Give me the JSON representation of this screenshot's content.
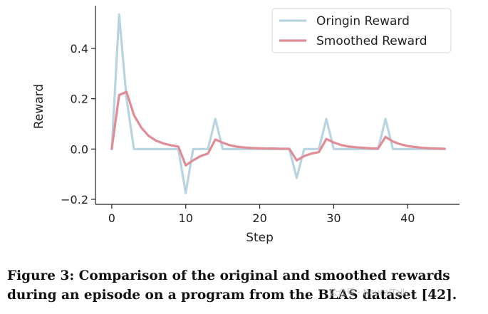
{
  "chart_data": {
    "type": "line",
    "xlabel": "Step",
    "ylabel": "Reward",
    "xlim": [
      -2.2,
      47
    ],
    "ylim": [
      -0.22,
      0.57
    ],
    "xticks": [
      0,
      10,
      20,
      30,
      40
    ],
    "yticks": [
      -0.2,
      0.0,
      0.2,
      0.4
    ],
    "ytick_labels": [
      "−0.2",
      "0.0",
      "0.2",
      "0.4"
    ],
    "grid": false,
    "legend_position": "top-right",
    "x": [
      0,
      1,
      2,
      3,
      4,
      5,
      6,
      7,
      8,
      9,
      10,
      11,
      12,
      13,
      14,
      15,
      16,
      17,
      18,
      19,
      20,
      21,
      22,
      23,
      24,
      25,
      26,
      27,
      28,
      29,
      30,
      31,
      32,
      33,
      34,
      35,
      36,
      37,
      38,
      39,
      40,
      41,
      42,
      43,
      44,
      45
    ],
    "series": [
      {
        "name": "Oringin Reward",
        "color": "#b9d4e1",
        "values": [
          0,
          0.535,
          0.2,
          0,
          0,
          0,
          0,
          0,
          0,
          0,
          -0.175,
          0,
          0,
          0,
          0.12,
          0,
          0,
          0,
          0,
          0,
          0,
          0,
          0,
          0,
          0,
          -0.115,
          0,
          0,
          0,
          0.12,
          0,
          0,
          0,
          0,
          0,
          0,
          0,
          0.12,
          0,
          0,
          0,
          0,
          0,
          0,
          0,
          0
        ]
      },
      {
        "name": "Smoothed Reward",
        "color": "#df8c96",
        "values": [
          0,
          0.215,
          0.227,
          0.135,
          0.085,
          0.052,
          0.033,
          0.022,
          0.015,
          0.01,
          -0.065,
          -0.045,
          -0.028,
          -0.018,
          0.038,
          0.025,
          0.015,
          0.009,
          0.006,
          0.004,
          0.003,
          0.002,
          0.002,
          0.001,
          0.001,
          -0.045,
          -0.028,
          -0.018,
          -0.012,
          0.04,
          0.026,
          0.016,
          0.01,
          0.007,
          0.005,
          0.003,
          0.002,
          0.048,
          0.03,
          0.019,
          0.012,
          0.008,
          0.005,
          0.003,
          0.002,
          0.001
        ]
      }
    ]
  },
  "caption": "Figure 3: Comparison of the original and smoothed rewards during an episode on a program from the BLAS dataset [42].",
  "watermark": "公众号 · NeuralTalk"
}
